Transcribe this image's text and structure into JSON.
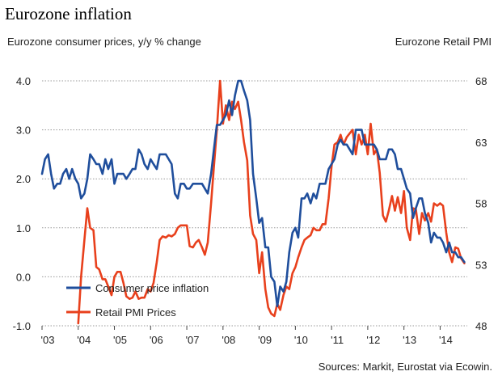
{
  "chart_data": {
    "type": "line",
    "title": "Eurozone inflation",
    "left_axis_label": "Eurozone consumer prices, y/y % change",
    "right_axis_label": "Eurozone Retail PMI",
    "source": "Sources: Markit, Eurostat via Ecowin.",
    "x_range": [
      2003.0,
      2014.75
    ],
    "x_tick_values": [
      2003,
      2004,
      2005,
      2006,
      2007,
      2008,
      2009,
      2010,
      2011,
      2012,
      2013,
      2014
    ],
    "x_tick_labels": [
      "'03",
      "'04",
      "'05",
      "'06",
      "'07",
      "'08",
      "'09",
      "'10",
      "'11",
      "'12",
      "'13",
      "'14"
    ],
    "left_ylim": [
      -1.0,
      4.0
    ],
    "left_ticks": [
      "-1.0",
      "0.0",
      "1.0",
      "2.0",
      "3.0",
      "4.0"
    ],
    "right_ylim": [
      48,
      68
    ],
    "right_ticks": [
      "48",
      "53",
      "58",
      "63",
      "68"
    ],
    "grid": true,
    "series": [
      {
        "name": "Consumer price inflation",
        "axis": "left",
        "color": "#1f4e9c",
        "points": [
          [
            2003.0,
            2.1
          ],
          [
            2003.08,
            2.4
          ],
          [
            2003.17,
            2.5
          ],
          [
            2003.25,
            2.1
          ],
          [
            2003.33,
            1.8
          ],
          [
            2003.42,
            1.9
          ],
          [
            2003.5,
            1.9
          ],
          [
            2003.58,
            2.1
          ],
          [
            2003.67,
            2.2
          ],
          [
            2003.75,
            2.0
          ],
          [
            2003.83,
            2.2
          ],
          [
            2003.92,
            2.0
          ],
          [
            2004.0,
            1.9
          ],
          [
            2004.08,
            1.6
          ],
          [
            2004.17,
            1.7
          ],
          [
            2004.25,
            2.0
          ],
          [
            2004.33,
            2.5
          ],
          [
            2004.42,
            2.4
          ],
          [
            2004.5,
            2.3
          ],
          [
            2004.58,
            2.3
          ],
          [
            2004.67,
            2.1
          ],
          [
            2004.75,
            2.4
          ],
          [
            2004.83,
            2.2
          ],
          [
            2004.92,
            2.4
          ],
          [
            2005.0,
            1.9
          ],
          [
            2005.08,
            2.1
          ],
          [
            2005.17,
            2.1
          ],
          [
            2005.25,
            2.1
          ],
          [
            2005.33,
            2.0
          ],
          [
            2005.42,
            2.1
          ],
          [
            2005.5,
            2.2
          ],
          [
            2005.58,
            2.2
          ],
          [
            2005.67,
            2.6
          ],
          [
            2005.75,
            2.5
          ],
          [
            2005.83,
            2.3
          ],
          [
            2005.92,
            2.2
          ],
          [
            2006.0,
            2.4
          ],
          [
            2006.08,
            2.3
          ],
          [
            2006.17,
            2.2
          ],
          [
            2006.25,
            2.5
          ],
          [
            2006.33,
            2.5
          ],
          [
            2006.42,
            2.5
          ],
          [
            2006.5,
            2.4
          ],
          [
            2006.58,
            2.3
          ],
          [
            2006.67,
            1.7
          ],
          [
            2006.75,
            1.6
          ],
          [
            2006.83,
            1.9
          ],
          [
            2006.92,
            1.9
          ],
          [
            2007.0,
            1.8
          ],
          [
            2007.08,
            1.8
          ],
          [
            2007.17,
            1.9
          ],
          [
            2007.25,
            1.9
          ],
          [
            2007.33,
            1.9
          ],
          [
            2007.42,
            1.9
          ],
          [
            2007.5,
            1.8
          ],
          [
            2007.58,
            1.7
          ],
          [
            2007.67,
            2.1
          ],
          [
            2007.75,
            2.6
          ],
          [
            2007.83,
            3.1
          ],
          [
            2007.92,
            3.1
          ],
          [
            2008.0,
            3.2
          ],
          [
            2008.08,
            3.3
          ],
          [
            2008.17,
            3.6
          ],
          [
            2008.25,
            3.3
          ],
          [
            2008.33,
            3.7
          ],
          [
            2008.42,
            4.0
          ],
          [
            2008.5,
            4.0
          ],
          [
            2008.58,
            3.8
          ],
          [
            2008.67,
            3.6
          ],
          [
            2008.75,
            3.2
          ],
          [
            2008.83,
            2.1
          ],
          [
            2008.92,
            1.6
          ],
          [
            2009.0,
            1.1
          ],
          [
            2009.08,
            1.2
          ],
          [
            2009.17,
            0.6
          ],
          [
            2009.25,
            0.6
          ],
          [
            2009.33,
            0.0
          ],
          [
            2009.42,
            -0.1
          ],
          [
            2009.5,
            -0.6
          ],
          [
            2009.58,
            -0.2
          ],
          [
            2009.67,
            -0.3
          ],
          [
            2009.75,
            -0.1
          ],
          [
            2009.83,
            0.5
          ],
          [
            2009.92,
            0.9
          ],
          [
            2010.0,
            1.0
          ],
          [
            2010.08,
            0.8
          ],
          [
            2010.17,
            1.6
          ],
          [
            2010.25,
            1.6
          ],
          [
            2010.33,
            1.7
          ],
          [
            2010.42,
            1.5
          ],
          [
            2010.5,
            1.7
          ],
          [
            2010.58,
            1.6
          ],
          [
            2010.67,
            1.9
          ],
          [
            2010.75,
            1.9
          ],
          [
            2010.83,
            1.9
          ],
          [
            2010.92,
            2.2
          ],
          [
            2011.0,
            2.3
          ],
          [
            2011.08,
            2.4
          ],
          [
            2011.17,
            2.7
          ],
          [
            2011.25,
            2.8
          ],
          [
            2011.33,
            2.7
          ],
          [
            2011.42,
            2.7
          ],
          [
            2011.5,
            2.6
          ],
          [
            2011.58,
            2.5
          ],
          [
            2011.67,
            3.0
          ],
          [
            2011.75,
            3.0
          ],
          [
            2011.83,
            3.0
          ],
          [
            2011.92,
            2.7
          ],
          [
            2012.0,
            2.7
          ],
          [
            2012.08,
            2.7
          ],
          [
            2012.17,
            2.7
          ],
          [
            2012.25,
            2.6
          ],
          [
            2012.33,
            2.4
          ],
          [
            2012.42,
            2.4
          ],
          [
            2012.5,
            2.4
          ],
          [
            2012.58,
            2.6
          ],
          [
            2012.67,
            2.6
          ],
          [
            2012.75,
            2.5
          ],
          [
            2012.83,
            2.2
          ],
          [
            2012.92,
            2.2
          ],
          [
            2013.0,
            2.0
          ],
          [
            2013.08,
            1.8
          ],
          [
            2013.17,
            1.7
          ],
          [
            2013.25,
            1.2
          ],
          [
            2013.33,
            1.4
          ],
          [
            2013.42,
            1.6
          ],
          [
            2013.5,
            1.6
          ],
          [
            2013.58,
            1.3
          ],
          [
            2013.67,
            1.1
          ],
          [
            2013.75,
            0.7
          ],
          [
            2013.83,
            0.9
          ],
          [
            2013.92,
            0.8
          ],
          [
            2014.0,
            0.8
          ],
          [
            2014.08,
            0.7
          ],
          [
            2014.17,
            0.5
          ],
          [
            2014.25,
            0.7
          ],
          [
            2014.33,
            0.5
          ],
          [
            2014.42,
            0.5
          ],
          [
            2014.5,
            0.4
          ],
          [
            2014.58,
            0.4
          ],
          [
            2014.67,
            0.3
          ]
        ]
      },
      {
        "name": "Retail PMI Prices",
        "axis": "right",
        "color": "#e8401c",
        "points": [
          [
            2004.0,
            48.2
          ],
          [
            2004.08,
            52.0
          ],
          [
            2004.17,
            55.0
          ],
          [
            2004.25,
            57.6
          ],
          [
            2004.33,
            56.0
          ],
          [
            2004.42,
            55.8
          ],
          [
            2004.5,
            52.8
          ],
          [
            2004.58,
            52.6
          ],
          [
            2004.67,
            51.8
          ],
          [
            2004.75,
            51.8
          ],
          [
            2004.83,
            51.2
          ],
          [
            2004.92,
            50.5
          ],
          [
            2005.0,
            52.0
          ],
          [
            2005.08,
            52.4
          ],
          [
            2005.17,
            52.4
          ],
          [
            2005.25,
            51.5
          ],
          [
            2005.33,
            50.4
          ],
          [
            2005.42,
            50.2
          ],
          [
            2005.5,
            50.3
          ],
          [
            2005.58,
            50.8
          ],
          [
            2005.67,
            50.2
          ],
          [
            2005.75,
            50.3
          ],
          [
            2005.83,
            50.3
          ],
          [
            2005.92,
            51.0
          ],
          [
            2006.0,
            50.8
          ],
          [
            2006.08,
            51.5
          ],
          [
            2006.17,
            53.2
          ],
          [
            2006.25,
            55.0
          ],
          [
            2006.33,
            55.3
          ],
          [
            2006.42,
            55.2
          ],
          [
            2006.5,
            55.4
          ],
          [
            2006.58,
            55.3
          ],
          [
            2006.67,
            55.5
          ],
          [
            2006.75,
            56.0
          ],
          [
            2006.83,
            56.2
          ],
          [
            2006.92,
            56.2
          ],
          [
            2007.0,
            56.2
          ],
          [
            2007.08,
            54.5
          ],
          [
            2007.17,
            54.4
          ],
          [
            2007.25,
            54.8
          ],
          [
            2007.33,
            55.0
          ],
          [
            2007.42,
            54.4
          ],
          [
            2007.5,
            53.8
          ],
          [
            2007.58,
            54.8
          ],
          [
            2007.67,
            58.0
          ],
          [
            2007.75,
            61.0
          ],
          [
            2007.83,
            64.0
          ],
          [
            2007.92,
            68.0
          ],
          [
            2008.0,
            64.5
          ],
          [
            2008.08,
            66.0
          ],
          [
            2008.17,
            64.8
          ],
          [
            2008.25,
            66.3
          ],
          [
            2008.33,
            65.7
          ],
          [
            2008.42,
            66.3
          ],
          [
            2008.5,
            64.8
          ],
          [
            2008.58,
            63.0
          ],
          [
            2008.67,
            61.5
          ],
          [
            2008.75,
            57.0
          ],
          [
            2008.83,
            55.5
          ],
          [
            2008.92,
            55.0
          ],
          [
            2009.0,
            52.3
          ],
          [
            2009.08,
            54.0
          ],
          [
            2009.17,
            51.0
          ],
          [
            2009.25,
            49.5
          ],
          [
            2009.33,
            49.0
          ],
          [
            2009.42,
            48.8
          ],
          [
            2009.5,
            49.8
          ],
          [
            2009.58,
            49.3
          ],
          [
            2009.67,
            50.5
          ],
          [
            2009.75,
            51.2
          ],
          [
            2009.83,
            51.0
          ],
          [
            2009.92,
            52.3
          ],
          [
            2010.0,
            52.8
          ],
          [
            2010.08,
            53.6
          ],
          [
            2010.17,
            54.4
          ],
          [
            2010.25,
            55.0
          ],
          [
            2010.33,
            55.2
          ],
          [
            2010.42,
            55.4
          ],
          [
            2010.5,
            56.0
          ],
          [
            2010.58,
            55.8
          ],
          [
            2010.67,
            55.8
          ],
          [
            2010.75,
            56.3
          ],
          [
            2010.83,
            56.3
          ],
          [
            2010.92,
            58.4
          ],
          [
            2011.0,
            61.0
          ],
          [
            2011.08,
            62.8
          ],
          [
            2011.17,
            63.0
          ],
          [
            2011.25,
            63.6
          ],
          [
            2011.33,
            62.8
          ],
          [
            2011.42,
            63.4
          ],
          [
            2011.5,
            63.7
          ],
          [
            2011.58,
            64.0
          ],
          [
            2011.67,
            62.0
          ],
          [
            2011.75,
            63.6
          ],
          [
            2011.83,
            62.8
          ],
          [
            2011.92,
            63.6
          ],
          [
            2012.0,
            62.0
          ],
          [
            2012.08,
            64.5
          ],
          [
            2012.17,
            62.0
          ],
          [
            2012.25,
            62.4
          ],
          [
            2012.33,
            60.5
          ],
          [
            2012.42,
            57.0
          ],
          [
            2012.5,
            56.5
          ],
          [
            2012.58,
            57.4
          ],
          [
            2012.67,
            58.6
          ],
          [
            2012.75,
            57.4
          ],
          [
            2012.83,
            58.5
          ],
          [
            2012.92,
            57.2
          ],
          [
            2013.0,
            59.0
          ],
          [
            2013.08,
            56.0
          ],
          [
            2013.17,
            55.0
          ],
          [
            2013.25,
            57.6
          ],
          [
            2013.33,
            57.5
          ],
          [
            2013.42,
            55.5
          ],
          [
            2013.5,
            57.2
          ],
          [
            2013.58,
            56.6
          ],
          [
            2013.67,
            57.2
          ],
          [
            2013.75,
            56.5
          ],
          [
            2013.83,
            58.0
          ],
          [
            2013.92,
            57.8
          ],
          [
            2014.0,
            58.0
          ],
          [
            2014.08,
            57.8
          ],
          [
            2014.17,
            55.6
          ],
          [
            2014.25,
            54.0
          ],
          [
            2014.33,
            53.2
          ],
          [
            2014.42,
            54.4
          ],
          [
            2014.5,
            54.3
          ],
          [
            2014.58,
            53.5
          ],
          [
            2014.67,
            53.1
          ]
        ]
      }
    ]
  }
}
